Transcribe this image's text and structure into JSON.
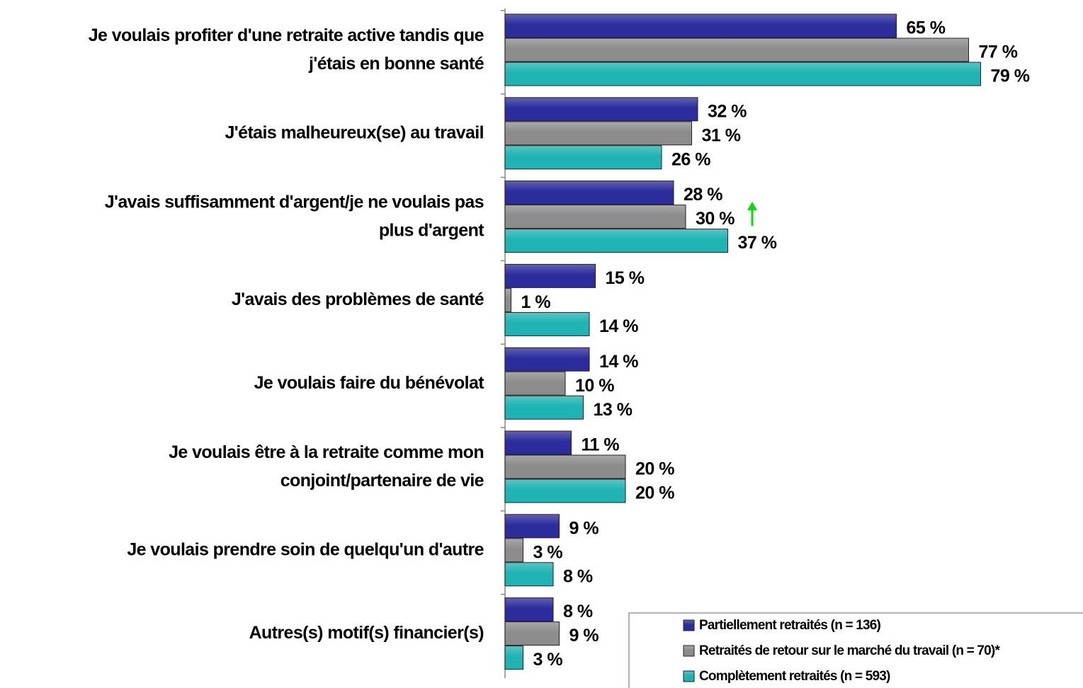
{
  "chart_data": {
    "type": "bar",
    "orientation": "horizontal",
    "categories": [
      "Je voulais profiter d'une retraite active tandis que\nj'étais en bonne santé",
      "J'étais malheureux(se) au travail",
      "J'avais suffisamment d'argent/je ne voulais pas\nplus d'argent",
      "J'avais des problèmes de santé",
      "Je voulais faire du bénévolat",
      "Je voulais être à la retraite comme mon\nconjoint/partenaire de vie",
      "Je voulais prendre soin de quelqu'un d'autre",
      "Autres(s) motif(s) financier(s)"
    ],
    "series": [
      {
        "name": "Partiellement retraités (n = 136)",
        "color": "#2c2c9c",
        "values": [
          65,
          32,
          28,
          15,
          14,
          11,
          9,
          8
        ],
        "value_labels": [
          "65 %",
          "32 %",
          "28 %",
          "15 %",
          "14 %",
          "11 %",
          "9 %",
          "8 %"
        ]
      },
      {
        "name": "Retraités de retour sur le marché du travail (n = 70)*",
        "color": "#8c8c8c",
        "values": [
          77,
          31,
          30,
          1,
          10,
          20,
          3,
          9
        ],
        "value_labels": [
          "77 %",
          "31 %",
          "30 %",
          "1 %",
          "10 %",
          "20 %",
          "3 %",
          "9 %"
        ]
      },
      {
        "name": "Complètement retraités (n = 593)",
        "color": "#1fb3b3",
        "values": [
          79,
          26,
          37,
          14,
          13,
          20,
          8,
          3
        ],
        "value_labels": [
          "79 %",
          "26 %",
          "37 %",
          "14 %",
          "13 %",
          "20 %",
          "8 %",
          "3 %"
        ]
      }
    ],
    "legend": "bottom-right"
  }
}
